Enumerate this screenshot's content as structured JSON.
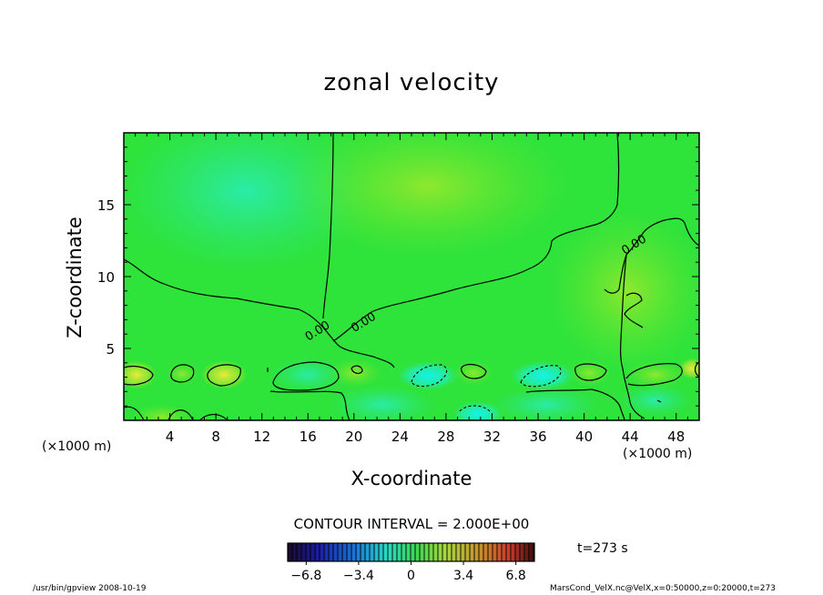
{
  "chart_data": {
    "type": "heatmap",
    "title": "zonal velocity",
    "xlabel": "X-coordinate",
    "ylabel": "Z-coordinate",
    "x_unit_left": "(×1000 m)",
    "x_unit_right": "(×1000 m)",
    "xlim": [
      0,
      50
    ],
    "ylim": [
      0,
      20
    ],
    "x_ticks": [
      4,
      8,
      12,
      16,
      20,
      24,
      28,
      32,
      36,
      40,
      44,
      48
    ],
    "y_ticks": [
      5,
      10,
      15
    ],
    "contour_interval_text": "CONTOUR INTERVAL = 2.000E+00",
    "contour_labels": [
      {
        "text": "0.00",
        "x": 17.0,
        "y": 6.0
      },
      {
        "text": "0.00",
        "x": 21.0,
        "y": 6.6
      },
      {
        "text": "0.00",
        "x": 44.5,
        "y": 12.0
      }
    ],
    "colorbar": {
      "min": -8.0,
      "max": 8.0,
      "tick_values": [
        -6.8,
        -3.4,
        0,
        3.4,
        6.8
      ],
      "tick_labels": [
        "−6.8",
        "−3.4",
        "0",
        "3.4",
        "6.8"
      ]
    },
    "time_text": "t=273 s",
    "footer_left": "/usr/bin/gpview   2008-10-19",
    "footer_right": "MarsCond_VelX.nc@VelX,x=0:50000,z=0:20000,t=273",
    "colors": {
      "background_field": "#2ee33a",
      "strong_negative": "#1ef0f0",
      "weak_negative": "#2ef0a0",
      "weak_positive": "#7be82c",
      "strong_positive": "#e8e83c"
    }
  }
}
